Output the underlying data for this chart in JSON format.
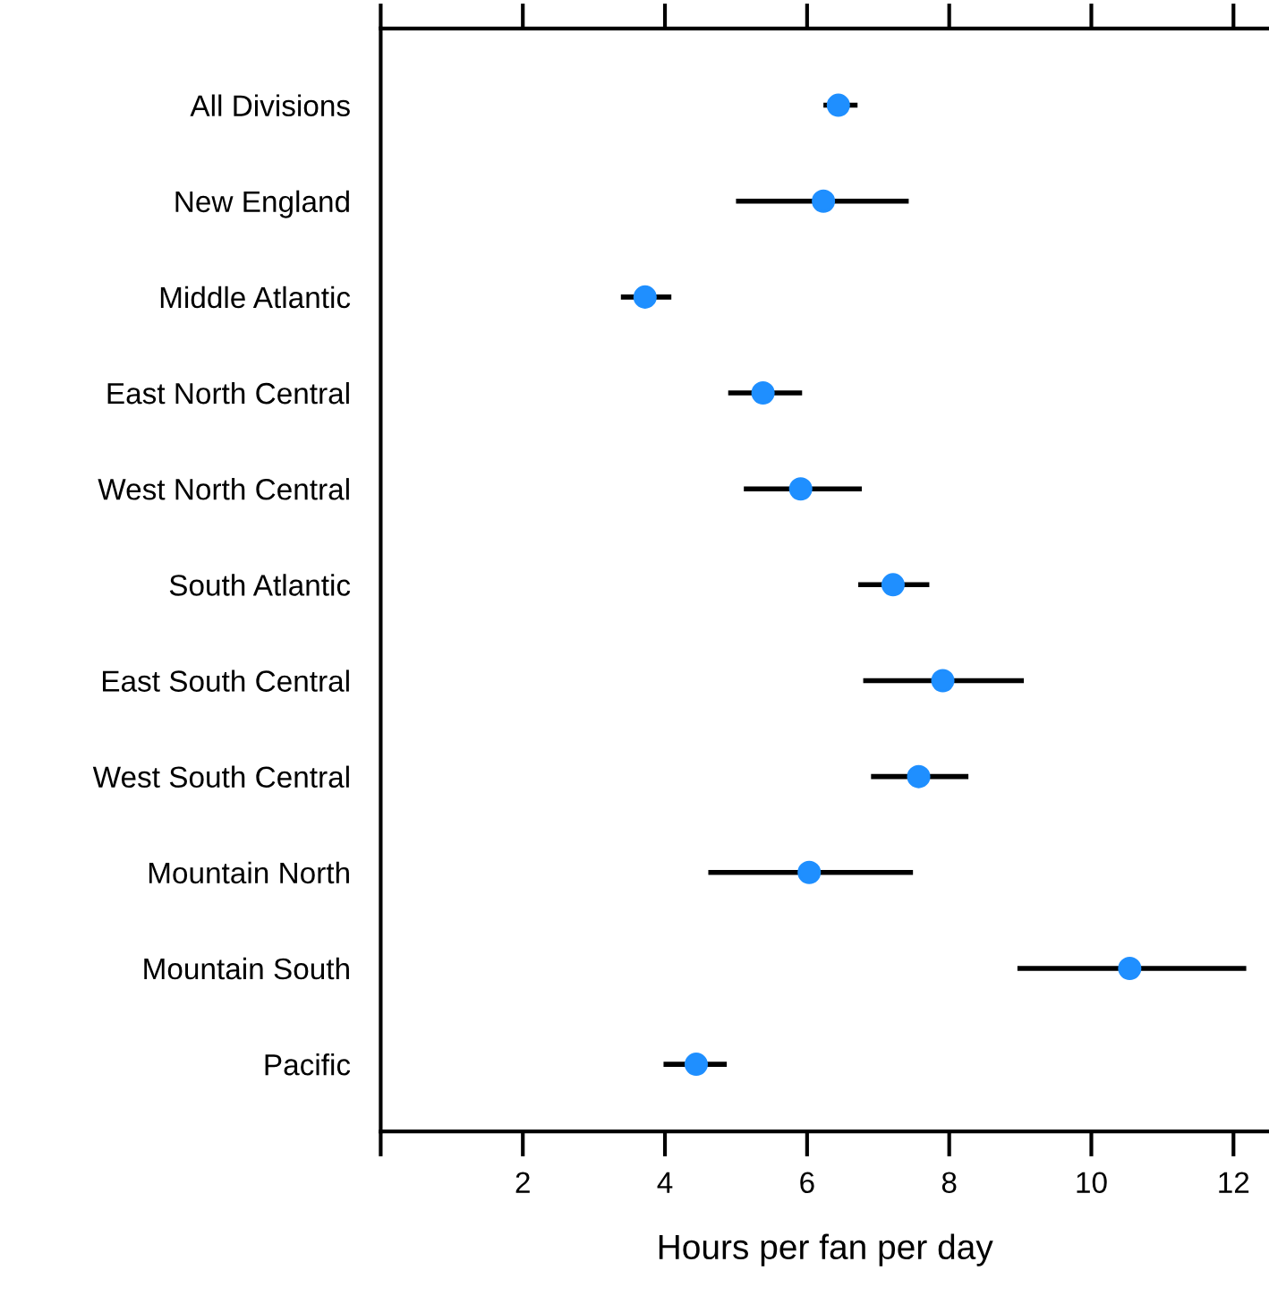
{
  "chart_data": {
    "type": "scatter",
    "orientation": "horizontal",
    "xlabel": "Hours per fan per day",
    "categories": [
      "All Divisions",
      "New England",
      "Middle Atlantic",
      "East North Central",
      "West North Central",
      "South Atlantic",
      "East South Central",
      "West South Central",
      "Mountain North",
      "Mountain South",
      "Pacific"
    ],
    "series": [
      {
        "color": "#1f8fff",
        "values": [
          6.44,
          6.23,
          3.72,
          5.38,
          5.91,
          7.21,
          7.91,
          7.57,
          6.03,
          10.54,
          4.44
        ],
        "errors": [
          [
            6.23,
            6.71
          ],
          [
            5.0,
            7.43
          ],
          [
            3.38,
            4.09
          ],
          [
            4.89,
            5.93
          ],
          [
            5.11,
            6.77
          ],
          [
            6.72,
            7.72
          ],
          [
            6.79,
            9.05
          ],
          [
            6.9,
            8.27
          ],
          [
            4.61,
            7.49
          ],
          [
            8.96,
            12.18
          ],
          [
            3.98,
            4.87
          ]
        ]
      }
    ],
    "xlim": [
      0,
      12.5
    ],
    "xticks": [
      {
        "value": 0,
        "label": null
      },
      2,
      4,
      6,
      8,
      10,
      12
    ],
    "marker": "circle",
    "grid": false
  }
}
